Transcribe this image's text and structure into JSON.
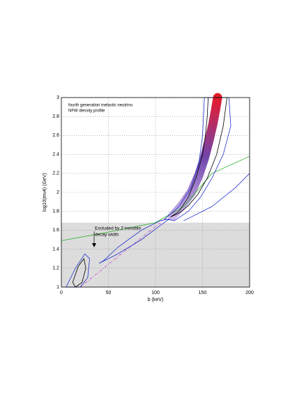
{
  "chart_data": {
    "type": "contour",
    "x_label": "b (keV)",
    "y_label": "log10(mν4) (GeV)",
    "annotations": [
      "fourth generation inelastic neutrino",
      "NFW density profile",
      "Excluded by Z invisible",
      "decay width"
    ],
    "xlim": [
      0,
      200
    ],
    "ylim": [
      1,
      3
    ],
    "xticks": [
      0,
      50,
      100,
      150,
      200
    ],
    "yticks": [
      1,
      1.2,
      1.4,
      1.6,
      1.8,
      2,
      2.2,
      2.4,
      2.6,
      2.8,
      3
    ],
    "grid": true,
    "shaded": {
      "y0": 1,
      "y1": 1.68,
      "color": "#dcdcdc"
    },
    "band": {
      "x": [
        118,
        128,
        138,
        146,
        152,
        157,
        161,
        164,
        166
      ],
      "values": [
        1.75,
        1.86,
        2.0,
        2.18,
        2.36,
        2.55,
        2.72,
        2.88,
        3.0
      ]
    },
    "series": [
      {
        "color": "#22aa22",
        "closed": false,
        "x": [
          0,
          50,
          100,
          130,
          160,
          200
        ],
        "values": [
          1.49,
          1.58,
          1.68,
          1.85,
          2.2,
          2.38
        ]
      },
      {
        "color": "#cc44cc",
        "closed": false,
        "dash": true,
        "x": [
          20,
          120
        ],
        "values": [
          1.0,
          1.8
        ]
      },
      {
        "color": "#000000",
        "closed": true,
        "x": [
          116,
          125,
          135,
          143,
          150,
          153,
          155,
          156,
          176,
          172,
          165,
          155,
          145,
          135,
          125
        ],
        "values": [
          1.74,
          1.8,
          1.95,
          2.15,
          2.4,
          2.6,
          2.8,
          3.0,
          3.0,
          2.7,
          2.4,
          2.15,
          1.98,
          1.86,
          1.78
        ]
      },
      {
        "color": "#2233cc",
        "closed": true,
        "x": [
          110,
          125,
          138,
          146,
          150,
          152,
          178,
          180,
          172,
          160,
          148,
          135,
          120
        ],
        "values": [
          1.72,
          1.85,
          2.05,
          2.3,
          2.6,
          3.0,
          3.0,
          2.7,
          2.4,
          2.15,
          1.95,
          1.8,
          1.7
        ]
      },
      {
        "color": "#2233cc",
        "closed": false,
        "x": [
          130,
          160,
          185,
          200
        ],
        "values": [
          1.7,
          1.85,
          2.05,
          2.2
        ]
      },
      {
        "color": "#2233cc",
        "closed": true,
        "x": [
          40,
          60,
          85,
          105,
          115,
          105,
          85,
          60,
          45
        ],
        "values": [
          1.25,
          1.35,
          1.5,
          1.65,
          1.72,
          1.7,
          1.6,
          1.42,
          1.28
        ]
      },
      {
        "color": "#2233cc",
        "closed": true,
        "x": [
          5,
          15,
          25,
          30,
          28,
          20,
          12
        ],
        "values": [
          1.0,
          1.2,
          1.35,
          1.3,
          1.1,
          1.0,
          1.0
        ]
      },
      {
        "color": "#000000",
        "closed": true,
        "x": [
          12,
          18,
          24,
          26,
          22,
          15
        ],
        "values": [
          1.05,
          1.22,
          1.3,
          1.2,
          1.05,
          1.0
        ]
      }
    ]
  }
}
